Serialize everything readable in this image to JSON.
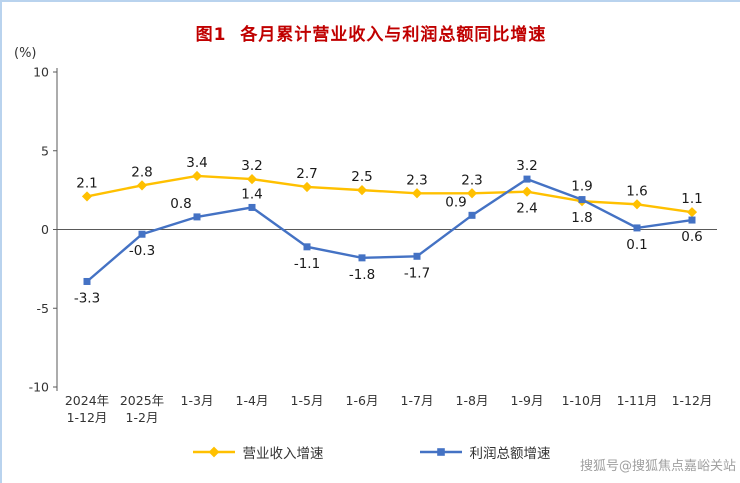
{
  "page": {
    "title": "图1  各月累计营业收入与利润总额同比增速",
    "unit_label": "(%)",
    "watermark": "搜狐号@搜狐焦点嘉峪关站"
  },
  "legend": [
    {
      "label": "营业收入增速",
      "color": "#FFC000",
      "marker": "diamond"
    },
    {
      "label": "利润总额增速",
      "color": "#4472C4",
      "marker": "square"
    }
  ],
  "chart_data": {
    "type": "line",
    "title": "图1 各月累计营业收入与利润总额同比增速",
    "xlabel": "",
    "ylabel": "(%)",
    "ylim": [
      -10,
      10
    ],
    "yticks": [
      10,
      5,
      0,
      -5,
      -10
    ],
    "grid": false,
    "legend_position": "bottom",
    "categories": [
      "2024年\n1-12月",
      "2025年\n1-2月",
      "1-3月",
      "1-4月",
      "1-5月",
      "1-6月",
      "1-7月",
      "1-8月",
      "1-9月",
      "1-10月",
      "1-11月",
      "1-12月"
    ],
    "series": [
      {
        "name": "营业收入增速",
        "color": "#FFC000",
        "marker": "diamond",
        "values": [
          2.1,
          2.8,
          3.4,
          3.2,
          2.7,
          2.5,
          2.3,
          2.3,
          2.4,
          1.8,
          1.6,
          1.1
        ],
        "label_positions": [
          "above",
          "above",
          "above",
          "above",
          "above",
          "above",
          "above",
          "above",
          "below",
          "below",
          "above",
          "above"
        ]
      },
      {
        "name": "利润总额增速",
        "color": "#4472C4",
        "marker": "square",
        "values": [
          -3.3,
          -0.3,
          0.8,
          1.4,
          -1.1,
          -1.8,
          -1.7,
          0.9,
          3.2,
          1.9,
          0.1,
          0.6
        ],
        "label_positions": [
          "below",
          "below",
          "above-left",
          "above",
          "below",
          "below",
          "below",
          "above-left",
          "above",
          "above",
          "below",
          "below"
        ]
      }
    ]
  }
}
